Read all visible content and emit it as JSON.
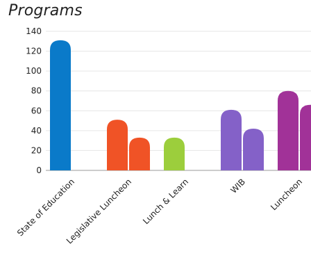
{
  "chart_data": {
    "type": "bar",
    "title": "Programs",
    "categories": [
      "State of Education",
      "Legislative Luncheon",
      "Lunch & Learn",
      "WIB",
      "Luncheon"
    ],
    "bars": [
      {
        "category": "State of Education",
        "values": [
          131
        ],
        "color": "#0a7ac9"
      },
      {
        "category": "Legislative Luncheon",
        "values": [
          51,
          33
        ],
        "color": "#f05326"
      },
      {
        "category": "Lunch & Learn",
        "values": [
          33
        ],
        "color": "#9cce3c"
      },
      {
        "category": "WIB",
        "values": [
          61,
          42
        ],
        "color": "#8461c8"
      },
      {
        "category": "Luncheon",
        "values": [
          80,
          66
        ],
        "color": "#a13298"
      }
    ],
    "yticks": [
      0,
      20,
      40,
      60,
      80,
      100,
      120,
      140
    ],
    "ylim": [
      0,
      140
    ],
    "xlabel": "",
    "ylabel": "",
    "grid": true,
    "legend": "none"
  }
}
